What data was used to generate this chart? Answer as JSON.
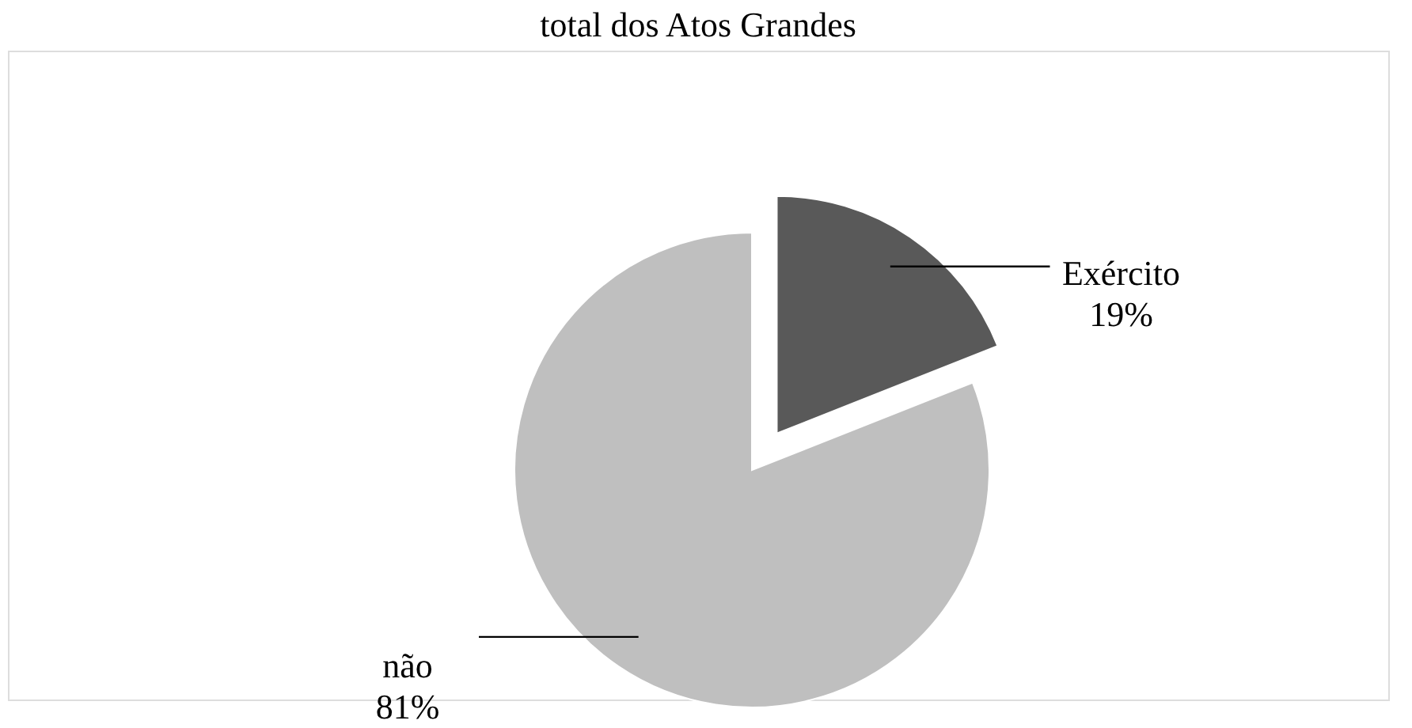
{
  "chart_data": {
    "type": "pie",
    "title": "total dos Atos Grandes",
    "categories": [
      "Exército",
      "não"
    ],
    "values": [
      19,
      81
    ],
    "value_labels": [
      "19%",
      "81%"
    ],
    "colors": [
      "#595959",
      "#bfbfbf"
    ]
  }
}
